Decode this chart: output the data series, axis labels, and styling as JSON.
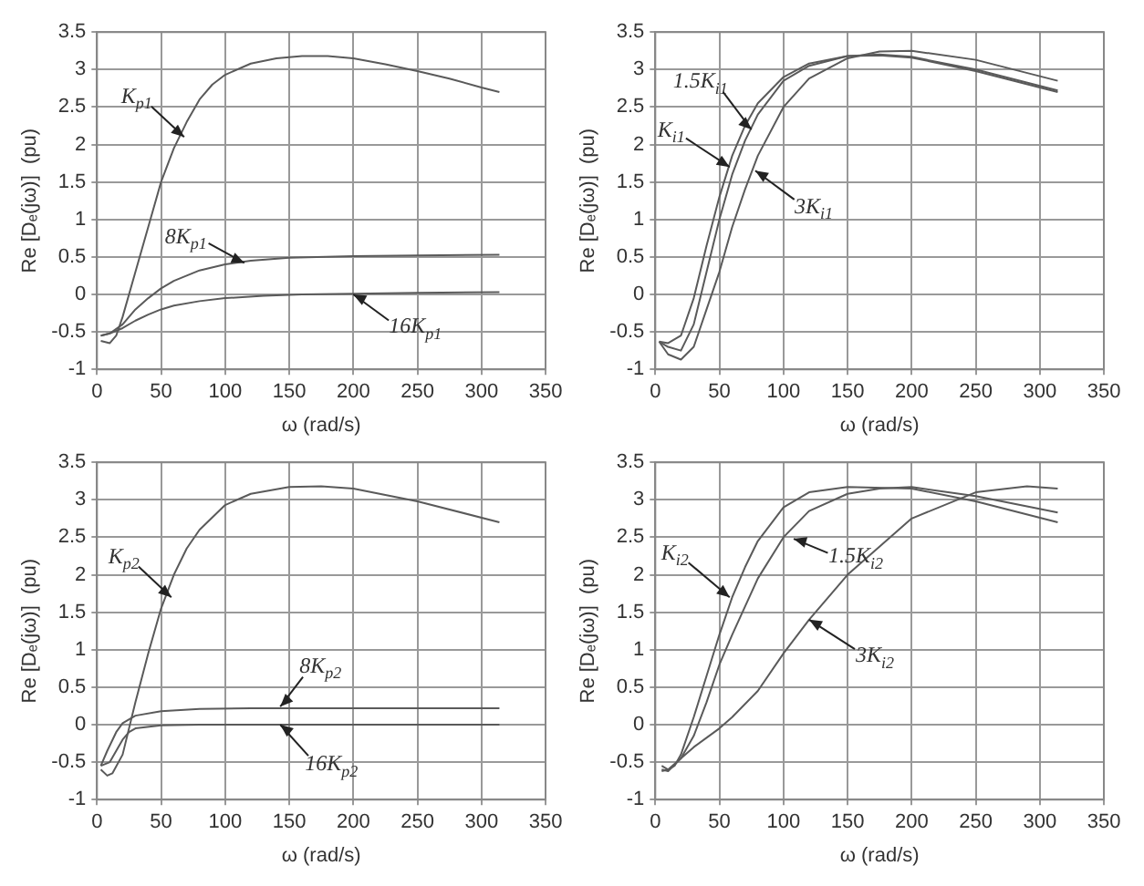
{
  "chart_data": [
    {
      "type": "line",
      "xlabel": "ω (rad/s)",
      "ylabel": "Re [Dₑ(jω)]  (pu)",
      "xlim": [
        0,
        350
      ],
      "xticks": [
        0,
        50,
        100,
        150,
        200,
        250,
        300,
        350
      ],
      "ylim": [
        -1,
        3.5
      ],
      "yticks": [
        -1,
        -0.5,
        0,
        0.5,
        1,
        1.5,
        2,
        2.5,
        3,
        3.5
      ],
      "grid": true,
      "series": [
        {
          "color": "#5a5a5a",
          "x": [
            3,
            10,
            15,
            20,
            30,
            40,
            50,
            60,
            70,
            80,
            90,
            100,
            120,
            140,
            160,
            180,
            200,
            225,
            250,
            275,
            300,
            314
          ],
          "values": [
            -0.62,
            -0.65,
            -0.55,
            -0.3,
            0.3,
            0.9,
            1.5,
            1.95,
            2.3,
            2.6,
            2.8,
            2.93,
            3.08,
            3.15,
            3.18,
            3.18,
            3.15,
            3.07,
            2.98,
            2.88,
            2.76,
            2.7
          ]
        },
        {
          "color": "#5a5a5a",
          "x": [
            3,
            10,
            20,
            30,
            40,
            50,
            60,
            80,
            100,
            120,
            150,
            200,
            250,
            314
          ],
          "values": [
            -0.55,
            -0.52,
            -0.4,
            -0.2,
            -0.05,
            0.08,
            0.18,
            0.32,
            0.4,
            0.45,
            0.49,
            0.51,
            0.52,
            0.53
          ]
        },
        {
          "color": "#5a5a5a",
          "x": [
            3,
            10,
            20,
            30,
            40,
            50,
            60,
            80,
            100,
            130,
            160,
            200,
            250,
            314
          ],
          "values": [
            -0.55,
            -0.52,
            -0.45,
            -0.35,
            -0.27,
            -0.2,
            -0.15,
            -0.09,
            -0.05,
            -0.02,
            0,
            0.01,
            0.02,
            0.03
          ]
        }
      ],
      "annotations": [
        {
          "text": "K$_{p1}$",
          "x": 68,
          "y": 2.1
        },
        {
          "text": "8K$_{p1}$",
          "x": 115,
          "y": 0.42
        },
        {
          "text": "16K$_{p1}$",
          "x": 200,
          "y": 0
        }
      ]
    },
    {
      "type": "line",
      "xlabel": "ω (rad/s)",
      "ylabel": "Re [Dₑ(jω)]  (pu)",
      "xlim": [
        0,
        350
      ],
      "xticks": [
        0,
        50,
        100,
        150,
        200,
        250,
        300,
        350
      ],
      "ylim": [
        -1,
        3.5
      ],
      "yticks": [
        -1,
        -0.5,
        0,
        0.5,
        1,
        1.5,
        2,
        2.5,
        3,
        3.5
      ],
      "grid": true,
      "series": [
        {
          "color": "#5a5a5a",
          "x": [
            3,
            10,
            20,
            30,
            40,
            50,
            60,
            70,
            80,
            100,
            120,
            150,
            175,
            200,
            250,
            314
          ],
          "values": [
            -0.63,
            -0.7,
            -0.75,
            -0.4,
            0.3,
            1.0,
            1.6,
            2.05,
            2.4,
            2.85,
            3.05,
            3.18,
            3.2,
            3.17,
            3.0,
            2.72
          ]
        },
        {
          "color": "#5a5a5a",
          "x": [
            3,
            10,
            20,
            30,
            40,
            50,
            60,
            70,
            80,
            100,
            120,
            150,
            175,
            200,
            250,
            314
          ],
          "values": [
            -0.63,
            -0.65,
            -0.55,
            -0.05,
            0.65,
            1.3,
            1.85,
            2.25,
            2.55,
            2.9,
            3.08,
            3.18,
            3.19,
            3.16,
            2.98,
            2.7
          ]
        },
        {
          "color": "#5a5a5a",
          "x": [
            3,
            10,
            20,
            30,
            40,
            50,
            60,
            70,
            80,
            100,
            120,
            150,
            175,
            200,
            250,
            314
          ],
          "values": [
            -0.63,
            -0.8,
            -0.87,
            -0.7,
            -0.2,
            0.3,
            0.9,
            1.4,
            1.85,
            2.5,
            2.88,
            3.15,
            3.24,
            3.25,
            3.13,
            2.85
          ]
        }
      ],
      "annotations": [
        {
          "text": "1.5K$_{i1}$",
          "x": 75,
          "y": 2.2
        },
        {
          "text": "K$_{i1}$",
          "x": 58,
          "y": 1.7
        },
        {
          "text": "3K$_{i1}$",
          "x": 78,
          "y": 1.65
        }
      ]
    },
    {
      "type": "line",
      "xlabel": "ω (rad/s)",
      "ylabel": "Re [Dₑ(jω)]  (pu)",
      "xlim": [
        0,
        350
      ],
      "xticks": [
        0,
        50,
        100,
        150,
        200,
        250,
        300,
        350
      ],
      "ylim": [
        -1,
        3.5
      ],
      "yticks": [
        -1,
        -0.5,
        0,
        0.5,
        1,
        1.5,
        2,
        2.5,
        3,
        3.5
      ],
      "grid": true,
      "series": [
        {
          "color": "#5a5a5a",
          "x": [
            3,
            8,
            12,
            20,
            30,
            40,
            50,
            60,
            70,
            80,
            100,
            120,
            150,
            175,
            200,
            250,
            314
          ],
          "values": [
            -0.6,
            -0.68,
            -0.65,
            -0.4,
            0.3,
            0.95,
            1.55,
            2.0,
            2.35,
            2.6,
            2.93,
            3.08,
            3.17,
            3.18,
            3.15,
            2.98,
            2.7
          ]
        },
        {
          "color": "#5a5a5a",
          "x": [
            3,
            8,
            15,
            20,
            30,
            50,
            80,
            120,
            200,
            314
          ],
          "values": [
            -0.55,
            -0.35,
            -0.1,
            0.02,
            0.12,
            0.18,
            0.21,
            0.22,
            0.22,
            0.22
          ]
        },
        {
          "color": "#5a5a5a",
          "x": [
            3,
            10,
            15,
            20,
            25,
            30,
            50,
            80,
            150,
            314
          ],
          "values": [
            -0.55,
            -0.5,
            -0.35,
            -0.2,
            -0.1,
            -0.05,
            -0.01,
            0,
            0,
            0
          ]
        }
      ],
      "annotations": [
        {
          "text": "K$_{p2}$",
          "x": 58,
          "y": 1.7
        },
        {
          "text": "8K$_{p2}$",
          "x": 143,
          "y": 0.24
        },
        {
          "text": "16K$_{p2}$",
          "x": 143,
          "y": 0
        }
      ]
    },
    {
      "type": "line",
      "xlabel": "ω (rad/s)",
      "ylabel": "Re [Dₑ(jω)]  (pu)",
      "xlim": [
        0,
        350
      ],
      "xticks": [
        0,
        50,
        100,
        150,
        200,
        250,
        300,
        350
      ],
      "ylim": [
        -1,
        3.5
      ],
      "yticks": [
        -1,
        -0.5,
        0,
        0.5,
        1,
        1.5,
        2,
        2.5,
        3,
        3.5
      ],
      "grid": true,
      "series": [
        {
          "color": "#5a5a5a",
          "x": [
            5,
            10,
            15,
            20,
            30,
            40,
            50,
            60,
            70,
            80,
            100,
            120,
            150,
            200,
            250,
            314
          ],
          "values": [
            -0.55,
            -0.6,
            -0.55,
            -0.4,
            0.1,
            0.65,
            1.2,
            1.7,
            2.1,
            2.45,
            2.9,
            3.1,
            3.17,
            3.15,
            2.98,
            2.7
          ]
        },
        {
          "color": "#5a5a5a",
          "x": [
            5,
            10,
            20,
            30,
            40,
            50,
            60,
            80,
            100,
            120,
            150,
            175,
            200,
            250,
            314
          ],
          "values": [
            -0.6,
            -0.62,
            -0.45,
            -0.15,
            0.3,
            0.8,
            1.2,
            1.95,
            2.5,
            2.85,
            3.08,
            3.15,
            3.17,
            3.05,
            2.83
          ]
        },
        {
          "color": "#5a5a5a",
          "x": [
            5,
            10,
            20,
            30,
            50,
            60,
            80,
            100,
            120,
            150,
            200,
            250,
            290,
            314
          ],
          "values": [
            -0.62,
            -0.6,
            -0.45,
            -0.3,
            -0.05,
            0.1,
            0.45,
            0.95,
            1.4,
            2.0,
            2.75,
            3.1,
            3.18,
            3.15
          ]
        }
      ],
      "annotations": [
        {
          "text": "K$_{i2}$",
          "x": 58,
          "y": 1.7
        },
        {
          "text": "1.5K$_{i2}$",
          "x": 108,
          "y": 2.48
        },
        {
          "text": "3K$_{i2}$",
          "x": 120,
          "y": 1.4
        }
      ]
    }
  ]
}
